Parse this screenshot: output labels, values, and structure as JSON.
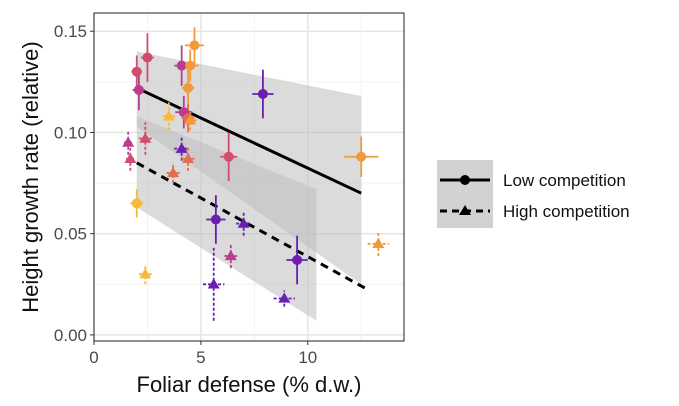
{
  "chart_data": {
    "type": "scatter",
    "title": "",
    "xlabel": "Foliar defense (% d.w.)",
    "ylabel": "Height growth rate (relative)",
    "xlim": [
      0,
      14.5
    ],
    "ylim": [
      -0.003,
      0.159
    ],
    "x_ticks": [
      0,
      5,
      10
    ],
    "x_tick_labels": [
      "0",
      "5",
      "10"
    ],
    "y_ticks": [
      0.0,
      0.05,
      0.1,
      0.15
    ],
    "y_tick_labels": [
      "0.00",
      "0.05",
      "0.10",
      "0.15"
    ],
    "grid": true,
    "legend": {
      "placement": "right",
      "entries": [
        {
          "label": "Low competition",
          "marker": "circle",
          "linestyle": "solid"
        },
        {
          "label": "High competition",
          "marker": "triangle",
          "linestyle": "dashed"
        }
      ]
    },
    "colors": {
      "purple": "#6a1fb0",
      "magenta": "#b83c8f",
      "rose": "#d14d6d",
      "coral": "#e07050",
      "orange": "#f29a3a",
      "yellow": "#f6b93b",
      "line": "#000000",
      "ribbon": "#bdbdbd"
    },
    "series": [
      {
        "name": "Low competition",
        "marker": "circle",
        "points": [
          {
            "x": 2.0,
            "y": 0.13,
            "xerr": 0.25,
            "yerr": 0.008,
            "color": "#d14d6d"
          },
          {
            "x": 2.1,
            "y": 0.121,
            "xerr": 0.3,
            "yerr": 0.01,
            "color": "#b83c8f"
          },
          {
            "x": 2.5,
            "y": 0.137,
            "xerr": 0.3,
            "yerr": 0.012,
            "color": "#d14d6d"
          },
          {
            "x": 2.0,
            "y": 0.065,
            "xerr": 0.3,
            "yerr": 0.007,
            "color": "#f6b93b"
          },
          {
            "x": 4.1,
            "y": 0.133,
            "xerr": 0.35,
            "yerr": 0.01,
            "color": "#b83c8f"
          },
          {
            "x": 4.2,
            "y": 0.11,
            "xerr": 0.4,
            "yerr": 0.008,
            "color": "#b83c8f"
          },
          {
            "x": 4.4,
            "y": 0.122,
            "xerr": 0.3,
            "yerr": 0.01,
            "color": "#f29a3a"
          },
          {
            "x": 4.5,
            "y": 0.133,
            "xerr": 0.4,
            "yerr": 0.008,
            "color": "#f29a3a"
          },
          {
            "x": 4.7,
            "y": 0.143,
            "xerr": 0.45,
            "yerr": 0.009,
            "color": "#f29a3a"
          },
          {
            "x": 4.4,
            "y": 0.107,
            "xerr": 0.3,
            "yerr": 0.007,
            "color": "#e07050"
          },
          {
            "x": 6.3,
            "y": 0.088,
            "xerr": 0.4,
            "yerr": 0.012,
            "color": "#d14d6d"
          },
          {
            "x": 7.9,
            "y": 0.119,
            "xerr": 0.5,
            "yerr": 0.012,
            "color": "#6a1fb0"
          },
          {
            "x": 5.7,
            "y": 0.057,
            "xerr": 0.45,
            "yerr": 0.012,
            "color": "#6a1fb0"
          },
          {
            "x": 9.5,
            "y": 0.037,
            "xerr": 0.5,
            "yerr": 0.012,
            "color": "#6a1fb0"
          },
          {
            "x": 12.5,
            "y": 0.088,
            "xerr": 0.8,
            "yerr": 0.01,
            "color": "#f29a3a"
          }
        ],
        "fit": {
          "x": [
            2.2,
            12.5
          ],
          "y": [
            0.121,
            0.07
          ]
        },
        "ribbon": {
          "x": [
            2.0,
            12.5
          ],
          "upper": [
            0.14,
            0.118
          ],
          "lower": [
            0.103,
            0.025
          ]
        }
      },
      {
        "name": "High competition",
        "marker": "triangle",
        "points": [
          {
            "x": 1.6,
            "y": 0.095,
            "xerr": 0.2,
            "yerr": 0.006,
            "color": "#b83c8f"
          },
          {
            "x": 1.7,
            "y": 0.087,
            "xerr": 0.2,
            "yerr": 0.006,
            "color": "#d14d6d"
          },
          {
            "x": 2.4,
            "y": 0.097,
            "xerr": 0.3,
            "yerr": 0.008,
            "color": "#d14d6d"
          },
          {
            "x": 2.4,
            "y": 0.03,
            "xerr": 0.3,
            "yerr": 0.005,
            "color": "#f6b93b"
          },
          {
            "x": 3.5,
            "y": 0.108,
            "xerr": 0.3,
            "yerr": 0.007,
            "color": "#f6b93b"
          },
          {
            "x": 3.7,
            "y": 0.08,
            "xerr": 0.3,
            "yerr": 0.005,
            "color": "#e07050"
          },
          {
            "x": 4.1,
            "y": 0.092,
            "xerr": 0.35,
            "yerr": 0.006,
            "color": "#6a1fb0"
          },
          {
            "x": 4.4,
            "y": 0.087,
            "xerr": 0.3,
            "yerr": 0.006,
            "color": "#e07050"
          },
          {
            "x": 4.5,
            "y": 0.106,
            "xerr": 0.3,
            "yerr": 0.005,
            "color": "#f29a3a"
          },
          {
            "x": 5.6,
            "y": 0.025,
            "xerr": 0.5,
            "yerr": 0.018,
            "color": "#6a1fb0"
          },
          {
            "x": 6.4,
            "y": 0.039,
            "xerr": 0.3,
            "yerr": 0.006,
            "color": "#b83c8f"
          },
          {
            "x": 7.0,
            "y": 0.055,
            "xerr": 0.35,
            "yerr": 0.006,
            "color": "#6a1fb0"
          },
          {
            "x": 8.9,
            "y": 0.018,
            "xerr": 0.5,
            "yerr": 0.004,
            "color": "#6a1fb0"
          },
          {
            "x": 13.3,
            "y": 0.045,
            "xerr": 0.5,
            "yerr": 0.006,
            "color": "#f29a3a"
          }
        ],
        "fit": {
          "x": [
            2.0,
            12.7
          ],
          "y": [
            0.085,
            0.023
          ]
        },
        "ribbon": {
          "x": [
            2.0,
            10.4
          ],
          "upper": [
            0.108,
            0.072
          ],
          "lower": [
            0.063,
            0.007
          ]
        }
      }
    ]
  }
}
